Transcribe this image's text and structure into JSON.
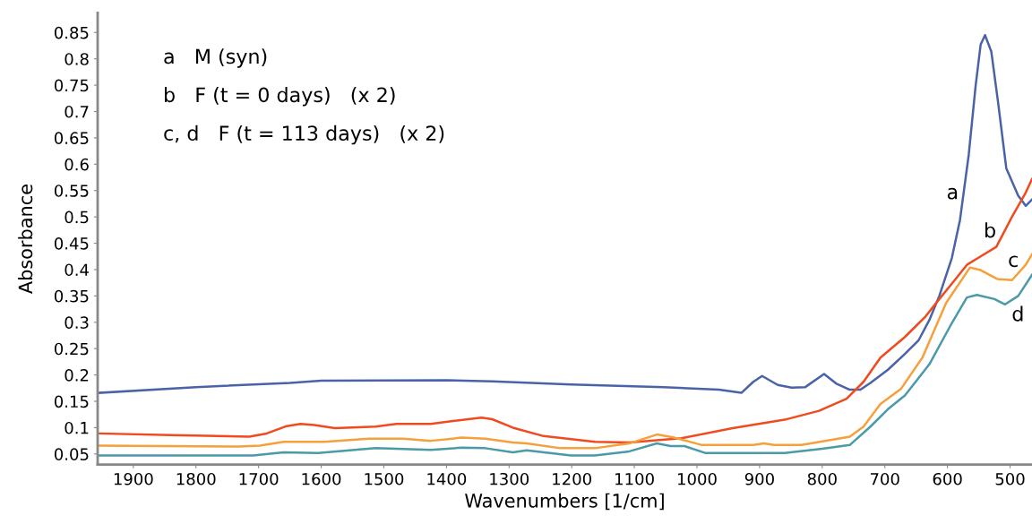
{
  "chart_data": {
    "type": "line",
    "xlabel": "Wavenumbers [1/cm]",
    "ylabel": "Absorbance",
    "xlim": [
      1957,
      465
    ],
    "ylim": [
      0.03,
      0.887
    ],
    "xticks": [
      1900,
      1800,
      1700,
      1600,
      1500,
      1400,
      1300,
      1200,
      1100,
      1000,
      900,
      800,
      700,
      600,
      500
    ],
    "yticks": [
      0.05,
      0.1,
      0.15,
      0.2,
      0.25,
      0.3,
      0.35,
      0.4,
      0.45,
      0.5,
      0.55,
      0.6,
      0.65,
      0.7,
      0.75,
      0.8,
      0.85
    ],
    "grid": false,
    "legend": false,
    "series": [
      {
        "color": "#4a63a8",
        "x": [
          1955,
          1800,
          1650,
          1600,
          1400,
          1327,
          1201,
          1053,
          965,
          929,
          910,
          896,
          871,
          849,
          827,
          797,
          778,
          756,
          739,
          723,
          695,
          668,
          646,
          629,
          613,
          593,
          580,
          566,
          555,
          547,
          540,
          530,
          519,
          506,
          487,
          475,
          465
        ],
        "values": [
          0.166,
          0.177,
          0.185,
          0.189,
          0.19,
          0.188,
          0.182,
          0.177,
          0.172,
          0.166,
          0.187,
          0.198,
          0.181,
          0.176,
          0.177,
          0.202,
          0.184,
          0.172,
          0.172,
          0.185,
          0.21,
          0.24,
          0.266,
          0.304,
          0.35,
          0.422,
          0.494,
          0.618,
          0.749,
          0.827,
          0.845,
          0.814,
          0.716,
          0.592,
          0.54,
          0.521,
          0.533
        ]
      },
      {
        "color": "#f04a1f",
        "x": [
          1955,
          1840,
          1715,
          1687,
          1655,
          1633,
          1611,
          1578,
          1513,
          1480,
          1425,
          1387,
          1344,
          1327,
          1294,
          1245,
          1163,
          1108,
          1025,
          943,
          860,
          805,
          761,
          734,
          707,
          668,
          635,
          613,
          591,
          569,
          547,
          522,
          497,
          475,
          465
        ],
        "values": [
          0.089,
          0.086,
          0.083,
          0.089,
          0.103,
          0.107,
          0.105,
          0.099,
          0.102,
          0.107,
          0.107,
          0.113,
          0.119,
          0.116,
          0.1,
          0.084,
          0.073,
          0.072,
          0.08,
          0.099,
          0.115,
          0.132,
          0.155,
          0.187,
          0.233,
          0.272,
          0.311,
          0.344,
          0.376,
          0.409,
          0.425,
          0.443,
          0.5,
          0.546,
          0.572
        ]
      },
      {
        "color": "#f5a03a",
        "x": [
          1955,
          1731,
          1698,
          1660,
          1595,
          1524,
          1469,
          1425,
          1376,
          1338,
          1294,
          1272,
          1218,
          1163,
          1108,
          1064,
          1036,
          992,
          910,
          893,
          877,
          833,
          789,
          756,
          734,
          707,
          674,
          640,
          602,
          564,
          547,
          520,
          497,
          475,
          465
        ],
        "values": [
          0.066,
          0.064,
          0.066,
          0.073,
          0.073,
          0.079,
          0.079,
          0.075,
          0.081,
          0.079,
          0.072,
          0.07,
          0.061,
          0.061,
          0.07,
          0.087,
          0.081,
          0.067,
          0.067,
          0.07,
          0.067,
          0.067,
          0.076,
          0.083,
          0.102,
          0.145,
          0.174,
          0.233,
          0.337,
          0.404,
          0.399,
          0.382,
          0.38,
          0.409,
          0.429
        ]
      },
      {
        "color": "#4a9aa8",
        "x": [
          1955,
          1709,
          1660,
          1605,
          1513,
          1425,
          1376,
          1338,
          1294,
          1272,
          1201,
          1163,
          1108,
          1064,
          1042,
          1020,
          987,
          899,
          860,
          800,
          756,
          723,
          695,
          668,
          629,
          596,
          569,
          553,
          525,
          508,
          487,
          465
        ],
        "values": [
          0.047,
          0.047,
          0.053,
          0.052,
          0.061,
          0.058,
          0.062,
          0.061,
          0.053,
          0.057,
          0.047,
          0.047,
          0.055,
          0.07,
          0.065,
          0.065,
          0.052,
          0.052,
          0.052,
          0.06,
          0.067,
          0.102,
          0.135,
          0.161,
          0.22,
          0.292,
          0.347,
          0.352,
          0.344,
          0.334,
          0.35,
          0.39
        ]
      }
    ],
    "annotations": [
      "a   M (syn)",
      "b   F (t = 0 days)   (x 2)",
      "c, d   F (t = 113 days)   (x 2)",
      "a",
      "b",
      "c",
      "d"
    ]
  }
}
